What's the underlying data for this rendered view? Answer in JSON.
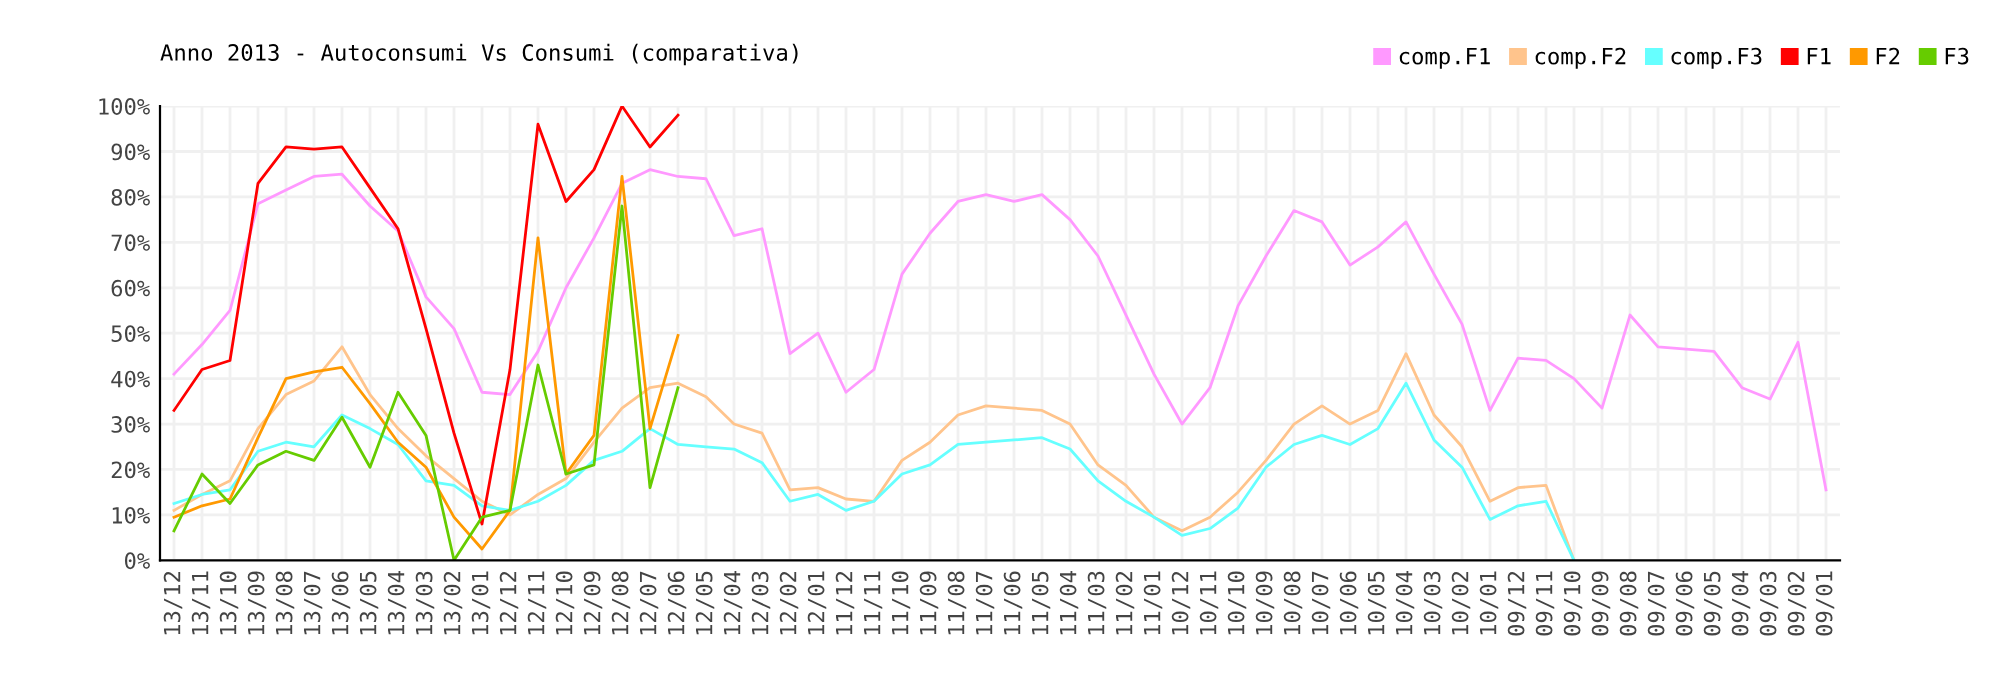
{
  "chart_data": {
    "type": "line",
    "title": "Anno 2013 - Autoconsumi Vs Consumi (comparativa)",
    "categories": [
      "13/12",
      "13/11",
      "13/10",
      "13/09",
      "13/08",
      "13/07",
      "13/06",
      "13/05",
      "13/04",
      "13/03",
      "13/02",
      "13/01",
      "12/12",
      "12/11",
      "12/10",
      "12/09",
      "12/08",
      "12/07",
      "12/06",
      "12/05",
      "12/04",
      "12/03",
      "12/02",
      "12/01",
      "11/12",
      "11/11",
      "11/10",
      "11/09",
      "11/08",
      "11/07",
      "11/06",
      "11/05",
      "11/04",
      "11/03",
      "11/02",
      "11/01",
      "10/12",
      "10/11",
      "10/10",
      "10/09",
      "10/08",
      "10/07",
      "10/06",
      "10/05",
      "10/04",
      "10/03",
      "10/02",
      "10/01",
      "09/12",
      "09/11",
      "09/10",
      "09/09",
      "09/08",
      "09/07",
      "09/06",
      "09/05",
      "09/04",
      "09/03",
      "09/02",
      "09/01"
    ],
    "series": [
      {
        "name": "comp.F1",
        "color": "#ff99ff",
        "values": [
          41,
          47.5,
          55,
          78.5,
          81.5,
          84.5,
          85,
          78,
          72.5,
          58,
          51,
          37,
          36.5,
          46,
          60,
          71,
          83,
          86,
          84.5,
          84,
          71.5,
          73,
          45.5,
          50,
          37,
          42,
          63,
          72,
          79,
          80.5,
          79,
          80.5,
          75,
          67,
          54,
          41,
          30,
          38,
          56,
          67,
          77,
          74.5,
          65,
          69,
          74.5,
          63,
          52,
          33,
          44.5,
          44,
          40,
          33.5,
          54,
          47,
          46.5,
          46,
          38,
          35.5,
          48,
          15.5
        ]
      },
      {
        "name": "comp.F2",
        "color": "#ffc48c",
        "values": [
          11,
          14.5,
          17.5,
          29,
          36.5,
          39.5,
          47,
          36.5,
          29,
          23,
          18,
          13,
          10,
          14.5,
          18,
          26,
          33.5,
          38,
          39,
          36,
          30,
          28,
          15.5,
          16,
          13.5,
          13,
          22,
          26,
          32,
          34,
          33.5,
          33,
          30,
          21,
          16.5,
          9.5,
          6.5,
          9.5,
          15,
          22,
          30,
          34,
          30,
          33,
          45.5,
          32,
          25,
          13,
          16,
          16.5,
          0,
          null,
          null,
          null,
          null,
          null,
          null,
          null,
          null,
          null
        ]
      },
      {
        "name": "comp.F3",
        "color": "#66ffff",
        "values": [
          12.5,
          14.5,
          15.5,
          24,
          26,
          25,
          32,
          29,
          25.5,
          17.5,
          16.5,
          12,
          11,
          13,
          16.5,
          22,
          24,
          29,
          25.5,
          25,
          24.5,
          21.5,
          13,
          14.5,
          11,
          13,
          19,
          21,
          25.5,
          26,
          26.5,
          27,
          24.5,
          17.5,
          13,
          9.5,
          5.5,
          7,
          11.5,
          20.5,
          25.5,
          27.5,
          25.5,
          29,
          39,
          26.5,
          20.5,
          9,
          12,
          13,
          0,
          null,
          null,
          null,
          null,
          null,
          null,
          null,
          null,
          null
        ]
      },
      {
        "name": "F1",
        "color": "#ff0000",
        "values": [
          33,
          42,
          44,
          83,
          91,
          90.5,
          91,
          82,
          73,
          51,
          28,
          8,
          42,
          96,
          79,
          86,
          100,
          91,
          98,
          null,
          null,
          null,
          null,
          null,
          null,
          null,
          null,
          null,
          null,
          null,
          null,
          null,
          null,
          null,
          null,
          null,
          null,
          null,
          null,
          null,
          null,
          null,
          null,
          null,
          null,
          null,
          null,
          null,
          null,
          null,
          null,
          null,
          null,
          null,
          null,
          null,
          null,
          null,
          null,
          null
        ]
      },
      {
        "name": "F2",
        "color": "#ff9900",
        "values": [
          9.5,
          12,
          13.5,
          27,
          40,
          41.5,
          42.5,
          34.5,
          26,
          20.5,
          9.5,
          2.5,
          11,
          71,
          19,
          27.5,
          84.5,
          29,
          49.5,
          null,
          null,
          null,
          null,
          null,
          null,
          null,
          null,
          null,
          null,
          null,
          null,
          null,
          null,
          null,
          null,
          null,
          null,
          null,
          null,
          null,
          null,
          null,
          null,
          null,
          null,
          null,
          null,
          null,
          null,
          null,
          null,
          null,
          null,
          null,
          null,
          null,
          null,
          null,
          null,
          null
        ]
      },
      {
        "name": "F3",
        "color": "#66cc00",
        "values": [
          6.5,
          19,
          12.5,
          21,
          24,
          22,
          31.5,
          20.5,
          37,
          27.5,
          0,
          9.5,
          11,
          43,
          19,
          21,
          78,
          16,
          38,
          null,
          null,
          null,
          null,
          null,
          null,
          null,
          null,
          null,
          null,
          null,
          null,
          null,
          null,
          null,
          null,
          null,
          null,
          null,
          null,
          null,
          null,
          null,
          null,
          null,
          null,
          null,
          null,
          null,
          null,
          null,
          null,
          null,
          null,
          null,
          null,
          null,
          null,
          null,
          null,
          null
        ]
      }
    ],
    "ylim": [
      0,
      100
    ],
    "yticks": [
      {
        "value": 0,
        "label": "0%"
      },
      {
        "value": 10,
        "label": "10%"
      },
      {
        "value": 20,
        "label": "20%"
      },
      {
        "value": 30,
        "label": "30%"
      },
      {
        "value": 40,
        "label": "40%"
      },
      {
        "value": 50,
        "label": "50%"
      },
      {
        "value": 60,
        "label": "60%"
      },
      {
        "value": 70,
        "label": "70%"
      },
      {
        "value": 80,
        "label": "80%"
      },
      {
        "value": 90,
        "label": "90%"
      },
      {
        "value": 100,
        "label": "100%"
      }
    ],
    "grid": true,
    "legend": "top right",
    "marker": "none",
    "line_style": "solid"
  }
}
